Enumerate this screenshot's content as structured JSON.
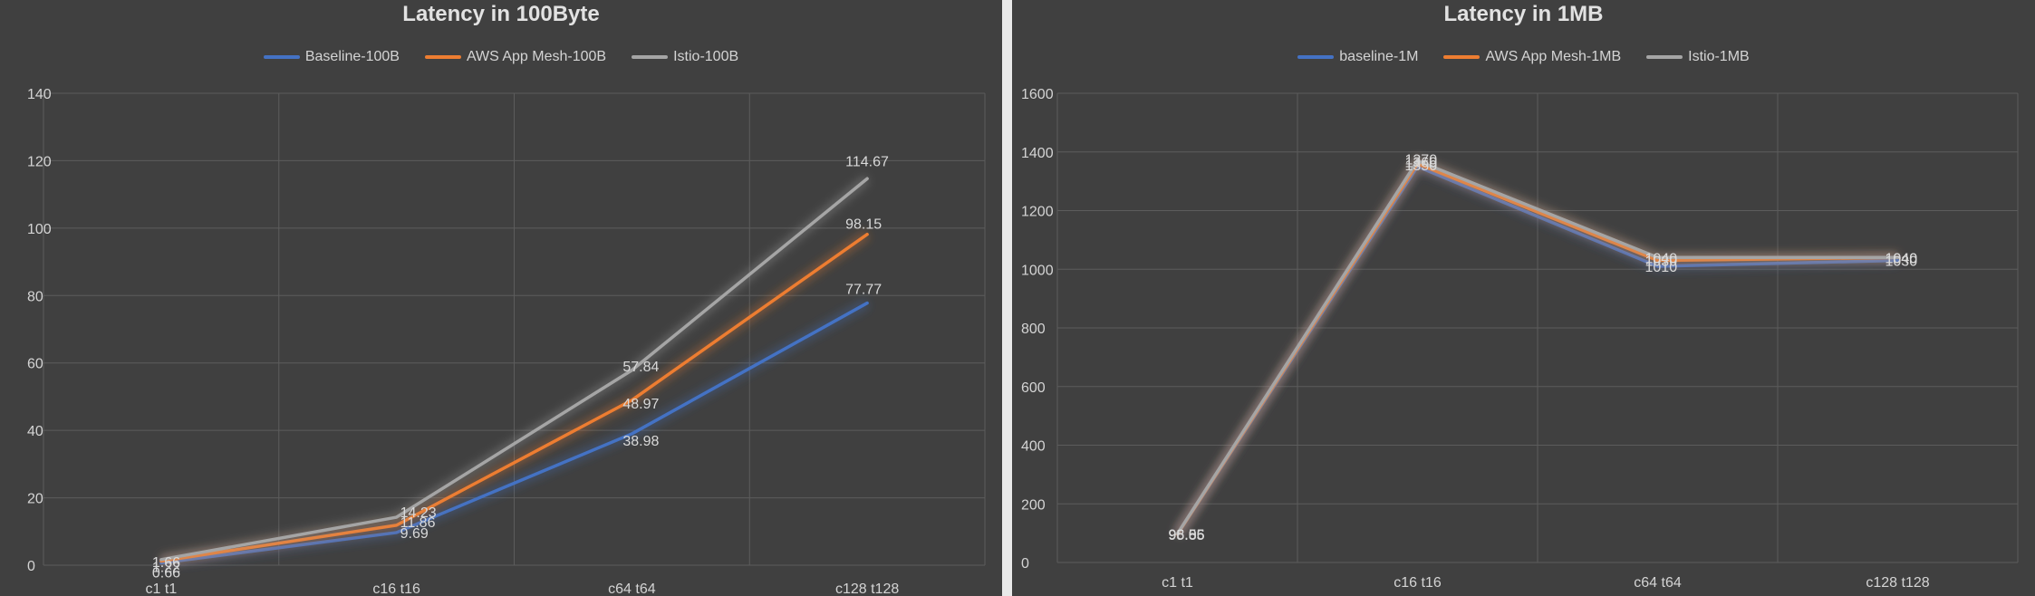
{
  "chart_data": [
    {
      "type": "line",
      "title": "Latency in 100Byte",
      "categories": [
        "c1 t1",
        "c16 t16",
        "c64 t64",
        "c128 t128"
      ],
      "ylim": [
        0,
        140
      ],
      "yticks": [
        0,
        20,
        40,
        60,
        80,
        100,
        120,
        140
      ],
      "grid": true,
      "legend_position": "top",
      "series": [
        {
          "name": "Baseline-100B",
          "color": "#4472c4",
          "values": [
            0.66,
            9.69,
            38.98,
            77.77
          ],
          "labels": [
            "0.66",
            "9.69",
            "38.98",
            "77.77"
          ]
        },
        {
          "name": "AWS App Mesh-100B",
          "color": "#ed7d31",
          "values": [
            1.22,
            11.86,
            48.97,
            98.15
          ],
          "labels": [
            "1.22",
            "11.86",
            "48.97",
            "98.15"
          ]
        },
        {
          "name": "Istio-100B",
          "color": "#a5a5a5",
          "values": [
            1.66,
            14.23,
            57.84,
            114.67
          ],
          "labels": [
            "1.66",
            "14.23",
            "57.84",
            "114.67"
          ]
        }
      ]
    },
    {
      "type": "line",
      "title": "Latency in 1MB",
      "categories": [
        "c1 t1",
        "c16 t16",
        "c64 t64",
        "c128 t128"
      ],
      "ylim": [
        0,
        1600
      ],
      "yticks": [
        0,
        200,
        400,
        600,
        800,
        1000,
        1200,
        1400,
        1600
      ],
      "grid": true,
      "legend_position": "top",
      "series": [
        {
          "name": "baseline-1M",
          "color": "#4472c4",
          "values": [
            95.85,
            1350,
            1010,
            1030
          ],
          "labels": [
            "95.85",
            "1350",
            "1010",
            "1030"
          ]
        },
        {
          "name": "AWS App Mesh-1MB",
          "color": "#ed7d31",
          "values": [
            96.55,
            1360,
            1030,
            1040
          ],
          "labels": [
            "96.55",
            "1360",
            "1030",
            "1040"
          ]
        },
        {
          "name": "Istio-1MB",
          "color": "#a5a5a5",
          "values": [
            98.06,
            1370,
            1040,
            1040
          ],
          "labels": [
            "98.06",
            "1370",
            "1040",
            "1040"
          ]
        }
      ]
    }
  ]
}
